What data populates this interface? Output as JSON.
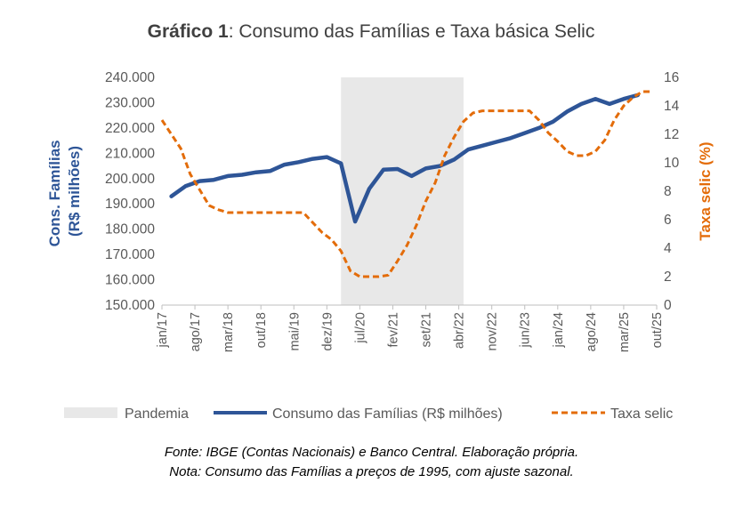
{
  "chart_data": {
    "type": "line",
    "title_bold": "Gráfico 1",
    "title_rest": ": Consumo das Famílias e Taxa básica Selic",
    "ylabel_line1": "Cons. Famílias",
    "ylabel_line2": "(R$ milhões)",
    "y2label": "Taxa selic (%)",
    "ylim": [
      150000,
      240000
    ],
    "y2lim": [
      0,
      16
    ],
    "yticks": [
      "150.000",
      "160.000",
      "170.000",
      "180.000",
      "190.000",
      "200.000",
      "210.000",
      "220.000",
      "230.000",
      "240.000"
    ],
    "y2ticks": [
      "0",
      "2",
      "4",
      "6",
      "8",
      "10",
      "12",
      "14",
      "16"
    ],
    "xticks": [
      "jan/17",
      "ago/17",
      "mar/18",
      "out/18",
      "mai/19",
      "dez/19",
      "jul/20",
      "fev/21",
      "set/21",
      "abr/22",
      "nov/22",
      "jun/23",
      "jan/24",
      "ago/24",
      "mar/25",
      "out/25"
    ],
    "x_range_months": [
      0,
      105
    ],
    "shaded_region": {
      "label": "Pandemia",
      "start_month": 38,
      "end_month": 64,
      "color": "#E8E8E8"
    },
    "series": [
      {
        "name": "Consumo das Famílias (R$ milhões)",
        "axis": "left",
        "color": "#2E5597",
        "style": "solid",
        "x": [
          2,
          5,
          8,
          11,
          14,
          17,
          20,
          23,
          26,
          29,
          32,
          35,
          38,
          41,
          44,
          47,
          50,
          53,
          56,
          59,
          62,
          65,
          68,
          71,
          74,
          77,
          80,
          83,
          86,
          89,
          92,
          95,
          98,
          101
        ],
        "values": [
          193000,
          197000,
          199000,
          199500,
          201000,
          201500,
          202500,
          203000,
          205500,
          206500,
          207800,
          208500,
          206000,
          183000,
          196000,
          203500,
          203800,
          201000,
          204000,
          205000,
          207500,
          211500,
          213000,
          214500,
          216000,
          218000,
          220000,
          222500,
          226500,
          229500,
          231500,
          229500,
          231500,
          233000
        ]
      },
      {
        "name": "Taxa selic",
        "axis": "right",
        "color": "#E36C0A",
        "style": "dashed",
        "x": [
          0,
          2,
          4,
          6,
          8,
          10,
          12,
          14,
          16,
          18,
          20,
          22,
          24,
          26,
          28,
          30,
          32,
          34,
          36,
          38,
          40,
          42,
          44,
          46,
          48,
          50,
          52,
          54,
          56,
          58,
          60,
          62,
          64,
          66,
          68,
          70,
          72,
          74,
          76,
          78,
          80,
          82,
          84,
          86,
          88,
          90,
          92,
          94,
          96,
          98,
          100,
          102,
          104
        ],
        "values": [
          13.0,
          12.0,
          11.0,
          9.2,
          8.1,
          7.0,
          6.7,
          6.5,
          6.5,
          6.5,
          6.5,
          6.5,
          6.5,
          6.5,
          6.5,
          6.5,
          5.8,
          5.1,
          4.6,
          3.8,
          2.4,
          2.0,
          2.0,
          2.0,
          2.1,
          3.1,
          4.2,
          5.6,
          7.3,
          8.6,
          10.5,
          11.8,
          12.9,
          13.5,
          13.65,
          13.65,
          13.65,
          13.65,
          13.65,
          13.65,
          13.0,
          12.1,
          11.5,
          10.8,
          10.5,
          10.5,
          10.8,
          11.6,
          13.0,
          14.0,
          14.6,
          15.0,
          15.0
        ]
      }
    ],
    "legend": [
      "Pandemia",
      "Consumo das Famílias (R$ milhões)",
      "Taxa selic"
    ],
    "legend_position": "bottom"
  },
  "notes": {
    "source": "Fonte: IBGE (Contas Nacionais) e Banco Central. Elaboração própria.",
    "note": "Nota: Consumo das Famílias a preços de 1995, com ajuste sazonal."
  }
}
